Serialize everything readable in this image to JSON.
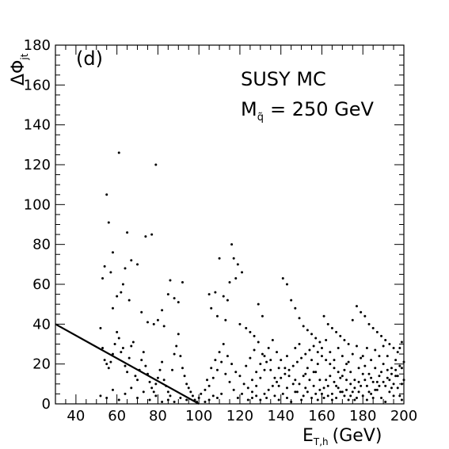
{
  "chart_data": {
    "type": "scatter",
    "panel_label": "(d)",
    "annotation": {
      "line1": "SUSY MC",
      "line2_main": "M",
      "line2_sub": "q̃",
      "line2_rest": "= 250 GeV"
    },
    "xlabel": {
      "main": "E",
      "sub": "T,h",
      "rest": "(GeV)"
    },
    "ylabel": {
      "main": "ΔΦ",
      "sub": "jt"
    },
    "xlim": [
      30,
      200
    ],
    "ylim": [
      0,
      180
    ],
    "xticks_major": [
      40,
      60,
      80,
      100,
      120,
      140,
      160,
      180,
      200
    ],
    "yticks_major": [
      0,
      20,
      40,
      60,
      80,
      100,
      120,
      140,
      160,
      180
    ],
    "xtick_labels": [
      "40",
      "60",
      "80",
      "100",
      "120",
      "140",
      "160",
      "180",
      "200"
    ],
    "ytick_labels": [
      "0",
      "20",
      "40",
      "60",
      "80",
      "100",
      "120",
      "140",
      "160",
      "180"
    ],
    "cut_line": {
      "x": [
        30,
        100
      ],
      "y": [
        40,
        0
      ]
    },
    "grid": false,
    "legend": "none",
    "colors": {
      "points": "#000000",
      "line": "#000000"
    },
    "points": [
      [
        61,
        126
      ],
      [
        55,
        105
      ],
      [
        56,
        91
      ],
      [
        79,
        120
      ],
      [
        65,
        86
      ],
      [
        77,
        85
      ],
      [
        74,
        84
      ],
      [
        58,
        76
      ],
      [
        67,
        72
      ],
      [
        64,
        68
      ],
      [
        57,
        66
      ],
      [
        63,
        60
      ],
      [
        60,
        54
      ],
      [
        58,
        48
      ],
      [
        53,
        63
      ],
      [
        54,
        69
      ],
      [
        70,
        70
      ],
      [
        62,
        56
      ],
      [
        66,
        52
      ],
      [
        72,
        46
      ],
      [
        75,
        41
      ],
      [
        78,
        40
      ],
      [
        80,
        42
      ],
      [
        82,
        47
      ],
      [
        83,
        39
      ],
      [
        85,
        55
      ],
      [
        86,
        62
      ],
      [
        88,
        53
      ],
      [
        90,
        51
      ],
      [
        92,
        61
      ],
      [
        52,
        38
      ],
      [
        53,
        28
      ],
      [
        54,
        22
      ],
      [
        55,
        20
      ],
      [
        56,
        18
      ],
      [
        57,
        21
      ],
      [
        58,
        25
      ],
      [
        59,
        30
      ],
      [
        60,
        36
      ],
      [
        61,
        33
      ],
      [
        62,
        26
      ],
      [
        63,
        28
      ],
      [
        64,
        19
      ],
      [
        65,
        16
      ],
      [
        66,
        23
      ],
      [
        67,
        29
      ],
      [
        68,
        31
      ],
      [
        69,
        14
      ],
      [
        70,
        12
      ],
      [
        71,
        17
      ],
      [
        72,
        22
      ],
      [
        73,
        26
      ],
      [
        74,
        19
      ],
      [
        75,
        15
      ],
      [
        76,
        11
      ],
      [
        77,
        8
      ],
      [
        78,
        6
      ],
      [
        79,
        10
      ],
      [
        80,
        13
      ],
      [
        81,
        17
      ],
      [
        82,
        21
      ],
      [
        83,
        12
      ],
      [
        84,
        9
      ],
      [
        85,
        6
      ],
      [
        86,
        4
      ],
      [
        87,
        17
      ],
      [
        88,
        25
      ],
      [
        89,
        29
      ],
      [
        90,
        35
      ],
      [
        91,
        24
      ],
      [
        92,
        18
      ],
      [
        93,
        14
      ],
      [
        94,
        10
      ],
      [
        95,
        8
      ],
      [
        96,
        6
      ],
      [
        97,
        4
      ],
      [
        98,
        2
      ],
      [
        99,
        1
      ],
      [
        100,
        3
      ],
      [
        101,
        5
      ],
      [
        52,
        4
      ],
      [
        55,
        3
      ],
      [
        58,
        7
      ],
      [
        61,
        2
      ],
      [
        64,
        5
      ],
      [
        67,
        8
      ],
      [
        70,
        3
      ],
      [
        73,
        6
      ],
      [
        76,
        2
      ],
      [
        79,
        4
      ],
      [
        82,
        1
      ],
      [
        85,
        2
      ],
      [
        88,
        1
      ],
      [
        91,
        3
      ],
      [
        94,
        2
      ],
      [
        103,
        1
      ],
      [
        105,
        2
      ],
      [
        107,
        4
      ],
      [
        109,
        3
      ],
      [
        111,
        5
      ],
      [
        105,
        55
      ],
      [
        108,
        56
      ],
      [
        112,
        54
      ],
      [
        114,
        52
      ],
      [
        116,
        80
      ],
      [
        117,
        73
      ],
      [
        119,
        70
      ],
      [
        121,
        66
      ],
      [
        118,
        63
      ],
      [
        115,
        61
      ],
      [
        110,
        73
      ],
      [
        106,
        48
      ],
      [
        109,
        44
      ],
      [
        113,
        42
      ],
      [
        120,
        40
      ],
      [
        123,
        38
      ],
      [
        125,
        36
      ],
      [
        127,
        34
      ],
      [
        129,
        50
      ],
      [
        131,
        44
      ],
      [
        141,
        63
      ],
      [
        143,
        60
      ],
      [
        145,
        52
      ],
      [
        147,
        48
      ],
      [
        149,
        43
      ],
      [
        151,
        39
      ],
      [
        153,
        37
      ],
      [
        155,
        35
      ],
      [
        157,
        33
      ],
      [
        159,
        31
      ],
      [
        161,
        44
      ],
      [
        163,
        40
      ],
      [
        165,
        38
      ],
      [
        167,
        36
      ],
      [
        169,
        34
      ],
      [
        171,
        32
      ],
      [
        173,
        30
      ],
      [
        175,
        42
      ],
      [
        177,
        49
      ],
      [
        179,
        46
      ],
      [
        181,
        44
      ],
      [
        183,
        40
      ],
      [
        185,
        38
      ],
      [
        187,
        36
      ],
      [
        189,
        34
      ],
      [
        191,
        32
      ],
      [
        193,
        30
      ],
      [
        195,
        28
      ],
      [
        197,
        26
      ],
      [
        199,
        31
      ],
      [
        104,
        12
      ],
      [
        106,
        18
      ],
      [
        108,
        22
      ],
      [
        110,
        26
      ],
      [
        112,
        30
      ],
      [
        114,
        24
      ],
      [
        116,
        20
      ],
      [
        118,
        16
      ],
      [
        120,
        14
      ],
      [
        122,
        10
      ],
      [
        124,
        8
      ],
      [
        126,
        6
      ],
      [
        128,
        4
      ],
      [
        130,
        2
      ],
      [
        132,
        5
      ],
      [
        134,
        7
      ],
      [
        136,
        9
      ],
      [
        138,
        11
      ],
      [
        140,
        13
      ],
      [
        142,
        15
      ],
      [
        144,
        17
      ],
      [
        146,
        19
      ],
      [
        148,
        21
      ],
      [
        150,
        23
      ],
      [
        152,
        25
      ],
      [
        154,
        27
      ],
      [
        156,
        29
      ],
      [
        158,
        26
      ],
      [
        160,
        24
      ],
      [
        162,
        22
      ],
      [
        164,
        20
      ],
      [
        166,
        18
      ],
      [
        168,
        16
      ],
      [
        170,
        14
      ],
      [
        172,
        12
      ],
      [
        174,
        10
      ],
      [
        176,
        8
      ],
      [
        178,
        6
      ],
      [
        180,
        4
      ],
      [
        182,
        2
      ],
      [
        184,
        5
      ],
      [
        186,
        7
      ],
      [
        188,
        9
      ],
      [
        190,
        11
      ],
      [
        192,
        13
      ],
      [
        194,
        15
      ],
      [
        196,
        17
      ],
      [
        198,
        19
      ],
      [
        200,
        21
      ],
      [
        199,
        10
      ],
      [
        103,
        7
      ],
      [
        105,
        9
      ],
      [
        107,
        13
      ],
      [
        109,
        17
      ],
      [
        111,
        21
      ],
      [
        113,
        15
      ],
      [
        115,
        11
      ],
      [
        117,
        7
      ],
      [
        119,
        3
      ],
      [
        121,
        5
      ],
      [
        123,
        19
      ],
      [
        125,
        23
      ],
      [
        127,
        27
      ],
      [
        129,
        31
      ],
      [
        131,
        25
      ],
      [
        133,
        21
      ],
      [
        135,
        17
      ],
      [
        137,
        13
      ],
      [
        139,
        9
      ],
      [
        141,
        5
      ],
      [
        143,
        3
      ],
      [
        145,
        1
      ],
      [
        147,
        6
      ],
      [
        149,
        10
      ],
      [
        151,
        14
      ],
      [
        153,
        18
      ],
      [
        155,
        22
      ],
      [
        157,
        16
      ],
      [
        159,
        12
      ],
      [
        161,
        8
      ],
      [
        163,
        4
      ],
      [
        165,
        2
      ],
      [
        167,
        9
      ],
      [
        169,
        13
      ],
      [
        171,
        17
      ],
      [
        173,
        21
      ],
      [
        175,
        25
      ],
      [
        177,
        29
      ],
      [
        179,
        23
      ],
      [
        181,
        19
      ],
      [
        183,
        15
      ],
      [
        185,
        11
      ],
      [
        187,
        7
      ],
      [
        189,
        3
      ],
      [
        191,
        1
      ],
      [
        193,
        6
      ],
      [
        195,
        10
      ],
      [
        197,
        14
      ],
      [
        199,
        18
      ],
      [
        198,
        4
      ],
      [
        126,
        12
      ],
      [
        128,
        16
      ],
      [
        130,
        20
      ],
      [
        132,
        24
      ],
      [
        134,
        28
      ],
      [
        136,
        32
      ],
      [
        138,
        26
      ],
      [
        140,
        22
      ],
      [
        142,
        18
      ],
      [
        144,
        14
      ],
      [
        146,
        10
      ],
      [
        148,
        6
      ],
      [
        150,
        2
      ],
      [
        152,
        8
      ],
      [
        154,
        12
      ],
      [
        156,
        16
      ],
      [
        158,
        20
      ],
      [
        160,
        28
      ],
      [
        162,
        32
      ],
      [
        164,
        26
      ],
      [
        166,
        22
      ],
      [
        168,
        28
      ],
      [
        170,
        24
      ],
      [
        172,
        20
      ],
      [
        174,
        16
      ],
      [
        176,
        12
      ],
      [
        178,
        18
      ],
      [
        180,
        24
      ],
      [
        182,
        28
      ],
      [
        184,
        22
      ],
      [
        186,
        18
      ],
      [
        188,
        14
      ],
      [
        190,
        20
      ],
      [
        192,
        24
      ],
      [
        194,
        18
      ],
      [
        196,
        14
      ],
      [
        133,
        3
      ],
      [
        137,
        4
      ],
      [
        139,
        2
      ],
      [
        143,
        8
      ],
      [
        147,
        12
      ],
      [
        151,
        4
      ],
      [
        153,
        6
      ],
      [
        155,
        3
      ],
      [
        157,
        5
      ],
      [
        159,
        7
      ],
      [
        161,
        3
      ],
      [
        163,
        9
      ],
      [
        165,
        5
      ],
      [
        167,
        3
      ],
      [
        169,
        6
      ],
      [
        171,
        4
      ],
      [
        173,
        2
      ],
      [
        175,
        6
      ],
      [
        177,
        3
      ],
      [
        179,
        9
      ],
      [
        181,
        12
      ],
      [
        183,
        6
      ],
      [
        185,
        3
      ],
      [
        187,
        11
      ],
      [
        189,
        16
      ],
      [
        191,
        9
      ],
      [
        193,
        12
      ],
      [
        195,
        4
      ],
      [
        197,
        8
      ],
      [
        199,
        2
      ],
      [
        135,
        22
      ],
      [
        139,
        18
      ],
      [
        143,
        24
      ],
      [
        147,
        28
      ],
      [
        149,
        30
      ],
      [
        152,
        15
      ],
      [
        156,
        9
      ],
      [
        158,
        2
      ],
      [
        160,
        5
      ],
      [
        162,
        12
      ],
      [
        164,
        14
      ],
      [
        166,
        11
      ],
      [
        168,
        8
      ],
      [
        170,
        6
      ],
      [
        172,
        7
      ],
      [
        174,
        4
      ],
      [
        176,
        2
      ],
      [
        178,
        11
      ],
      [
        180,
        15
      ],
      [
        182,
        9
      ],
      [
        184,
        13
      ],
      [
        186,
        27
      ],
      [
        188,
        24
      ],
      [
        190,
        29
      ],
      [
        192,
        17
      ],
      [
        194,
        8
      ],
      [
        196,
        22
      ],
      [
        198,
        28
      ],
      [
        200,
        12
      ],
      [
        124,
        2
      ],
      [
        126,
        3
      ],
      [
        128,
        9
      ],
      [
        130,
        13
      ],
      [
        132,
        17
      ]
    ]
  }
}
